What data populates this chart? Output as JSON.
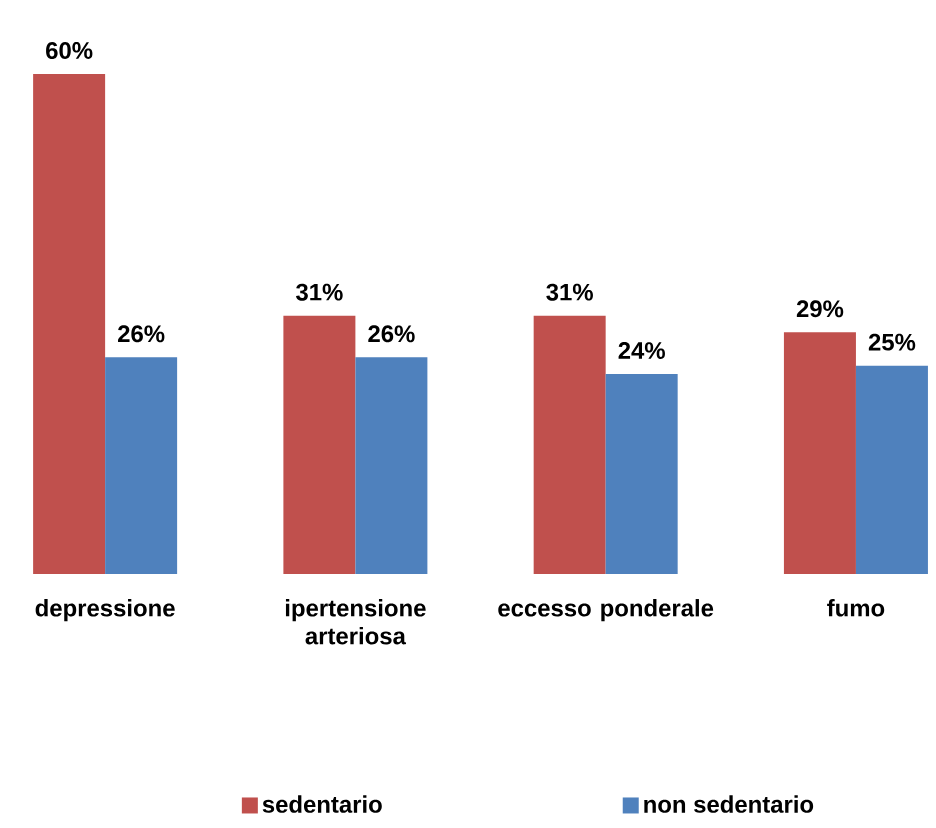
{
  "chart_data": {
    "type": "bar",
    "categories": [
      "depressione",
      "ipertensione arteriosa",
      "eccesso ponderale",
      "fumo"
    ],
    "series": [
      {
        "name": "sedentario",
        "color": "#c0504d",
        "values": [
          60,
          31,
          31,
          29
        ],
        "value_labels": [
          "60%",
          "31%",
          "31%",
          "29%"
        ]
      },
      {
        "name": "non sedentario",
        "color": "#4f81bd",
        "values": [
          26,
          26,
          24,
          25
        ],
        "value_labels": [
          "26%",
          "26%",
          "24%",
          "25%"
        ]
      }
    ],
    "legend": "bottom",
    "tick_labels": "x"
  }
}
